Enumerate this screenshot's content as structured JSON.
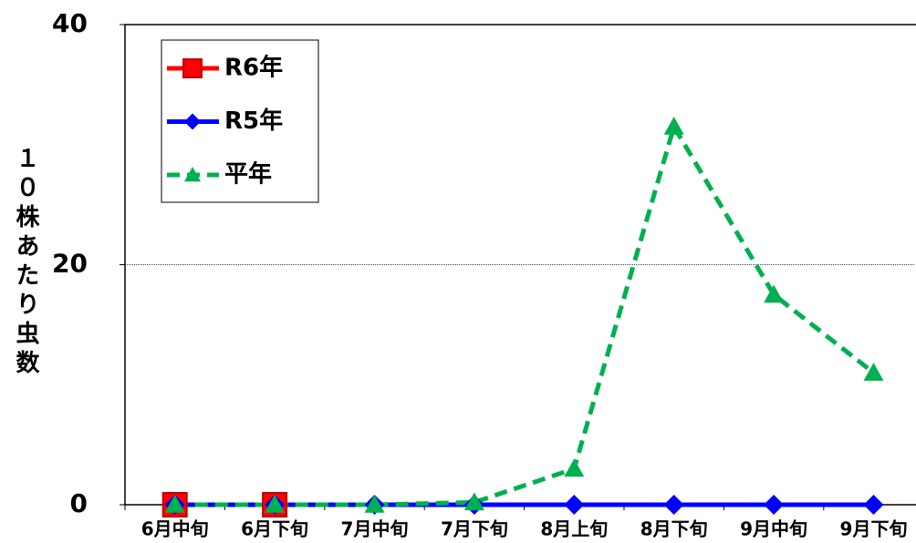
{
  "chart_data": {
    "type": "line",
    "y_label": "１０株あたり虫数",
    "categories": [
      "6月中旬",
      "6月下旬",
      "7月中旬",
      "7月下旬",
      "8月上旬",
      "8月下旬",
      "9月中旬",
      "9月下旬"
    ],
    "series": [
      {
        "name": "R6年",
        "color": "#ff0000",
        "marker": "square",
        "dash": false,
        "values": [
          0,
          0,
          null,
          null,
          null,
          null,
          null,
          null
        ]
      },
      {
        "name": "R5年",
        "color": "#0000ff",
        "marker": "diamond",
        "dash": false,
        "values": [
          0,
          0,
          0,
          0,
          0,
          0,
          0,
          0
        ]
      },
      {
        "name": "平年",
        "color": "#00b050",
        "marker": "triangle",
        "dash": true,
        "values": [
          0,
          0,
          0,
          0.2,
          3,
          31.5,
          17.5,
          11
        ]
      }
    ],
    "ylim": [
      0,
      40
    ],
    "yticks": [
      0,
      20,
      40
    ],
    "grid": true,
    "legend": "upper left"
  }
}
